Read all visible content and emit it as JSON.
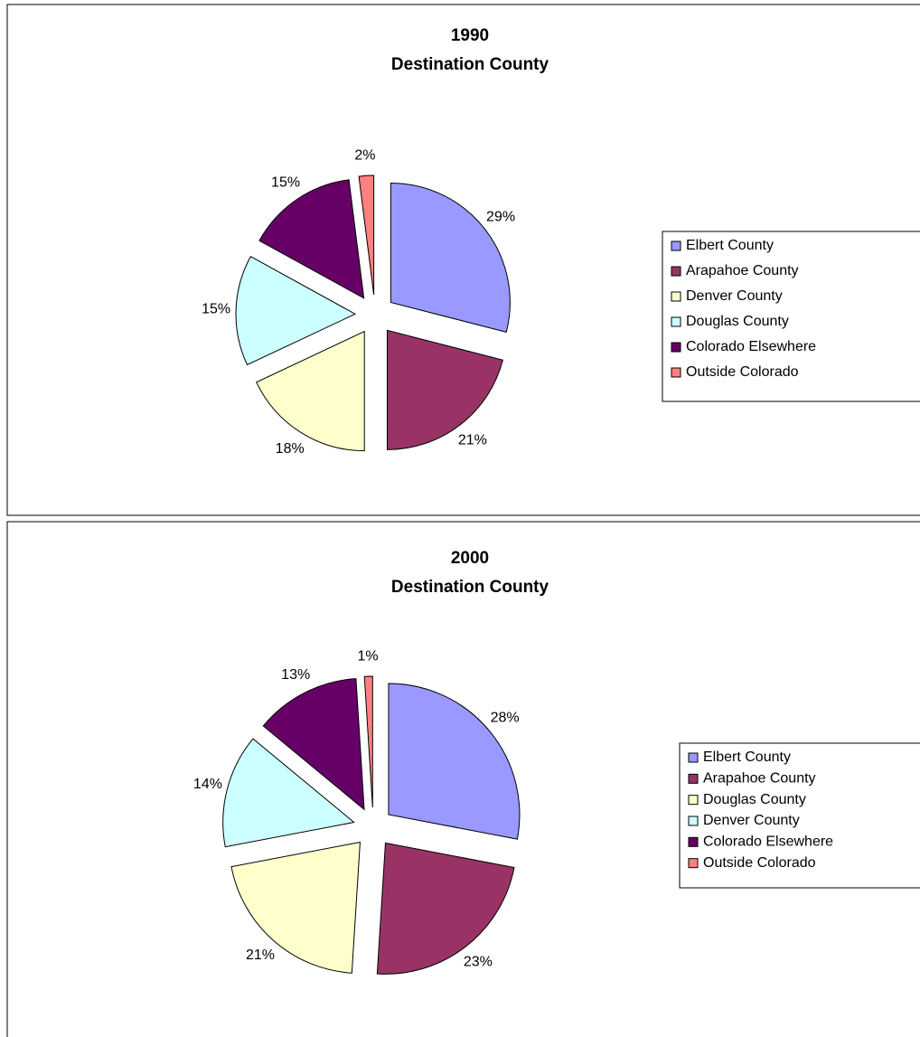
{
  "chart_data": [
    {
      "type": "pie",
      "title": "1990",
      "subtitle": "Destination County",
      "categories": [
        "Elbert County",
        "Arapahoe County",
        "Denver County",
        "Douglas County",
        "Colorado Elsewhere",
        "Outside Colorado"
      ],
      "values": [
        29,
        21,
        18,
        15,
        15,
        2
      ],
      "value_labels": [
        "29%",
        "21%",
        "18%",
        "15%",
        "15%",
        "2%"
      ],
      "colors": [
        "#9999ff",
        "#993366",
        "#ffffcc",
        "#ccffff",
        "#660066",
        "#ff8080"
      ],
      "legend": "right"
    },
    {
      "type": "pie",
      "title": "2000",
      "subtitle": "Destination County",
      "categories": [
        "Elbert County",
        "Arapahoe County",
        "Douglas County",
        "Denver County",
        "Colorado Elsewhere",
        "Outside Colorado"
      ],
      "values": [
        28,
        23,
        21,
        14,
        13,
        1
      ],
      "value_labels": [
        "28%",
        "23%",
        "21%",
        "14%",
        "13%",
        "1%"
      ],
      "colors": [
        "#9999ff",
        "#993366",
        "#ffffcc",
        "#ccffff",
        "#660066",
        "#ff8080"
      ],
      "legend": "right"
    }
  ]
}
